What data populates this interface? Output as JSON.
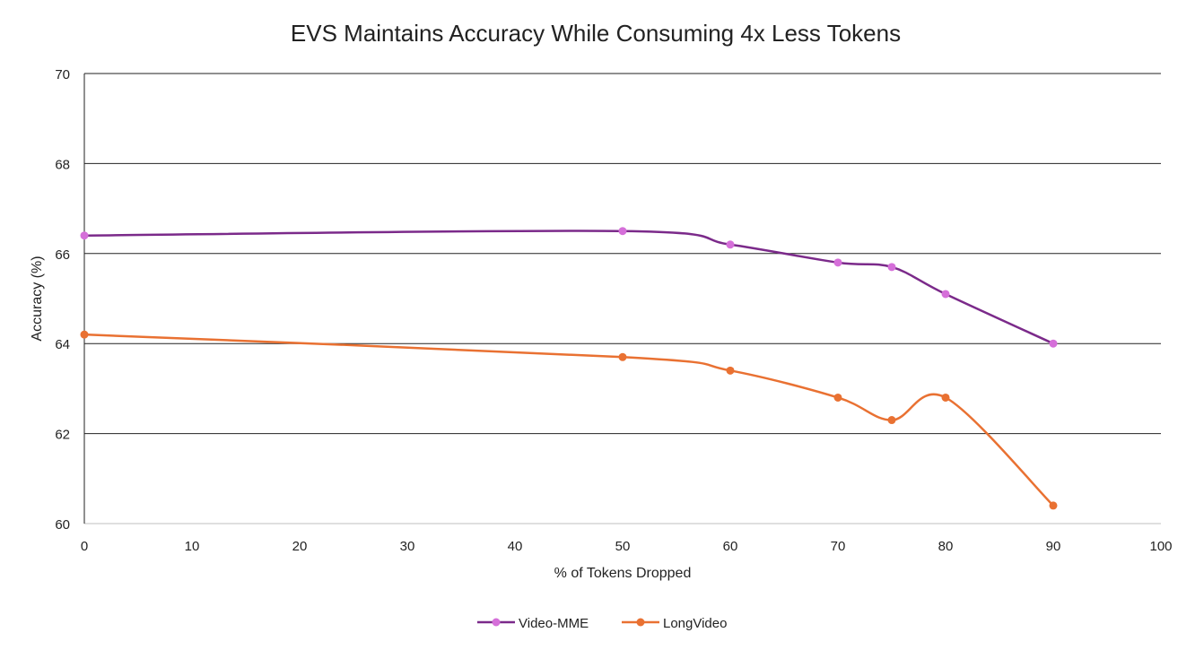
{
  "chart_data": {
    "type": "line",
    "title": "EVS Maintains Accuracy While Consuming 4x Less Tokens",
    "xlabel": "% of Tokens Dropped",
    "ylabel": "Accuracy (%)",
    "xlim": [
      0,
      100
    ],
    "ylim": [
      60,
      70
    ],
    "xticks": [
      0,
      10,
      20,
      30,
      40,
      50,
      60,
      70,
      80,
      90,
      100
    ],
    "yticks": [
      60,
      62,
      64,
      66,
      68,
      70
    ],
    "grid": "horizontal",
    "legend": "bottom",
    "smooth": true,
    "x": [
      0,
      50,
      60,
      70,
      75,
      80,
      90
    ],
    "series": [
      {
        "name": "Video-MME",
        "values": [
          66.4,
          66.5,
          66.2,
          65.8,
          65.7,
          65.1,
          64.0
        ],
        "line_color": "#7B2A8A",
        "marker_color": "#D56FD9"
      },
      {
        "name": "LongVideo",
        "values": [
          64.2,
          63.7,
          63.4,
          62.8,
          62.3,
          62.8,
          60.4
        ],
        "line_color": "#E97132",
        "marker_color": "#E97132"
      }
    ]
  }
}
